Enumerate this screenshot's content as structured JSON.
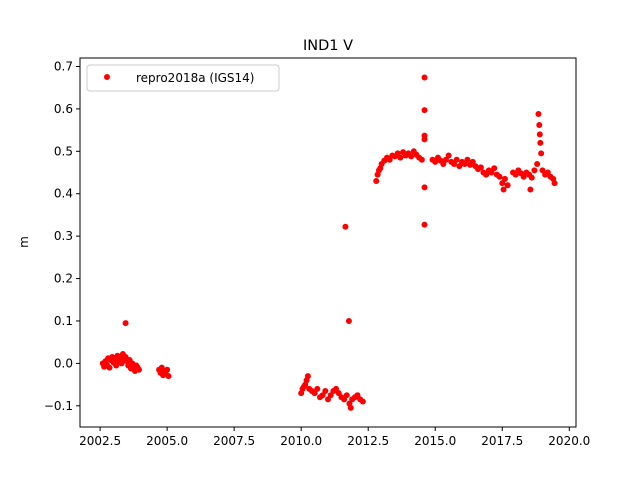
{
  "chart_data": {
    "type": "scatter",
    "title": "IND1 V",
    "xlabel": "",
    "ylabel": "m",
    "xlim": [
      2001.75,
      2020.25
    ],
    "ylim": [
      -0.15,
      0.72
    ],
    "xticks": [
      2002.5,
      2005.0,
      2007.5,
      2010.0,
      2012.5,
      2015.0,
      2017.5,
      2020.0
    ],
    "xtick_labels": [
      "2002.5",
      "2005.0",
      "2007.5",
      "2010.0",
      "2012.5",
      "2015.0",
      "2017.5",
      "2020.0"
    ],
    "yticks": [
      -0.1,
      0.0,
      0.1,
      0.2,
      0.3,
      0.4,
      0.5,
      0.6,
      0.7
    ],
    "ytick_labels": [
      "−0.1",
      "0.0",
      "0.1",
      "0.2",
      "0.3",
      "0.4",
      "0.5",
      "0.6",
      "0.7"
    ],
    "grid": false,
    "legend_position": "top-left",
    "series": [
      {
        "name": "repro2018a (IGS14)",
        "color": "#ff0000",
        "marker": "circle",
        "points": [
          [
            2002.6,
            0.0
          ],
          [
            2002.65,
            -0.008
          ],
          [
            2002.7,
            0.005
          ],
          [
            2002.75,
            -0.003
          ],
          [
            2002.8,
            0.012
          ],
          [
            2002.85,
            -0.01
          ],
          [
            2002.9,
            0.008
          ],
          [
            2002.95,
            0.015
          ],
          [
            2003.0,
            0.002
          ],
          [
            2003.05,
            0.01
          ],
          [
            2003.1,
            -0.005
          ],
          [
            2003.15,
            0.018
          ],
          [
            2003.2,
            0.006
          ],
          [
            2003.25,
            0.012
          ],
          [
            2003.3,
            0.0
          ],
          [
            2003.35,
            0.022
          ],
          [
            2003.4,
            0.01
          ],
          [
            2003.45,
            0.015
          ],
          [
            2003.5,
            0.005
          ],
          [
            2003.55,
            -0.005
          ],
          [
            2003.6,
            0.008
          ],
          [
            2003.65,
            -0.012
          ],
          [
            2003.7,
            0.0
          ],
          [
            2003.75,
            -0.008
          ],
          [
            2003.8,
            -0.018
          ],
          [
            2003.85,
            -0.005
          ],
          [
            2003.9,
            -0.01
          ],
          [
            2003.95,
            -0.015
          ],
          [
            2003.45,
            0.095
          ],
          [
            2004.7,
            -0.015
          ],
          [
            2004.75,
            -0.022
          ],
          [
            2004.8,
            -0.01
          ],
          [
            2004.85,
            -0.028
          ],
          [
            2004.9,
            -0.018
          ],
          [
            2004.95,
            -0.025
          ],
          [
            2005.0,
            -0.015
          ],
          [
            2005.05,
            -0.03
          ],
          [
            2010.0,
            -0.07
          ],
          [
            2010.05,
            -0.06
          ],
          [
            2010.1,
            -0.055
          ],
          [
            2010.15,
            -0.05
          ],
          [
            2010.2,
            -0.04
          ],
          [
            2010.25,
            -0.03
          ],
          [
            2010.3,
            -0.06
          ],
          [
            2010.4,
            -0.065
          ],
          [
            2010.5,
            -0.07
          ],
          [
            2010.6,
            -0.06
          ],
          [
            2010.7,
            -0.08
          ],
          [
            2010.8,
            -0.075
          ],
          [
            2010.9,
            -0.065
          ],
          [
            2011.0,
            -0.085
          ],
          [
            2011.1,
            -0.075
          ],
          [
            2011.2,
            -0.065
          ],
          [
            2011.3,
            -0.06
          ],
          [
            2011.4,
            -0.07
          ],
          [
            2011.5,
            -0.08
          ],
          [
            2011.6,
            -0.085
          ],
          [
            2011.7,
            -0.075
          ],
          [
            2011.8,
            -0.095
          ],
          [
            2011.9,
            -0.085
          ],
          [
            2012.0,
            -0.08
          ],
          [
            2012.1,
            -0.075
          ],
          [
            2012.2,
            -0.085
          ],
          [
            2012.3,
            -0.09
          ],
          [
            2011.65,
            0.322
          ],
          [
            2011.78,
            0.1
          ],
          [
            2011.85,
            -0.105
          ],
          [
            2012.8,
            0.43
          ],
          [
            2012.85,
            0.445
          ],
          [
            2012.9,
            0.455
          ],
          [
            2012.95,
            0.46
          ],
          [
            2013.0,
            0.47
          ],
          [
            2013.1,
            0.478
          ],
          [
            2013.2,
            0.485
          ],
          [
            2013.3,
            0.48
          ],
          [
            2013.4,
            0.49
          ],
          [
            2013.5,
            0.488
          ],
          [
            2013.6,
            0.495
          ],
          [
            2013.7,
            0.485
          ],
          [
            2013.8,
            0.498
          ],
          [
            2013.9,
            0.49
          ],
          [
            2014.0,
            0.495
          ],
          [
            2014.1,
            0.488
          ],
          [
            2014.2,
            0.5
          ],
          [
            2014.3,
            0.492
          ],
          [
            2014.4,
            0.485
          ],
          [
            2014.5,
            0.48
          ],
          [
            2014.6,
            0.674
          ],
          [
            2014.6,
            0.597
          ],
          [
            2014.6,
            0.537
          ],
          [
            2014.6,
            0.528
          ],
          [
            2014.6,
            0.415
          ],
          [
            2014.6,
            0.327
          ],
          [
            2014.9,
            0.48
          ],
          [
            2015.0,
            0.475
          ],
          [
            2015.1,
            0.485
          ],
          [
            2015.2,
            0.478
          ],
          [
            2015.3,
            0.47
          ],
          [
            2015.4,
            0.48
          ],
          [
            2015.5,
            0.49
          ],
          [
            2015.6,
            0.475
          ],
          [
            2015.7,
            0.47
          ],
          [
            2015.8,
            0.48
          ],
          [
            2015.9,
            0.465
          ],
          [
            2016.0,
            0.475
          ],
          [
            2016.1,
            0.47
          ],
          [
            2016.2,
            0.48
          ],
          [
            2016.3,
            0.468
          ],
          [
            2016.4,
            0.475
          ],
          [
            2016.5,
            0.465
          ],
          [
            2016.6,
            0.458
          ],
          [
            2016.7,
            0.462
          ],
          [
            2016.8,
            0.45
          ],
          [
            2016.9,
            0.445
          ],
          [
            2017.0,
            0.455
          ],
          [
            2017.1,
            0.45
          ],
          [
            2017.2,
            0.46
          ],
          [
            2017.3,
            0.445
          ],
          [
            2017.4,
            0.44
          ],
          [
            2017.5,
            0.425
          ],
          [
            2017.55,
            0.41
          ],
          [
            2017.6,
            0.435
          ],
          [
            2017.7,
            0.42
          ],
          [
            2017.9,
            0.45
          ],
          [
            2018.0,
            0.445
          ],
          [
            2018.1,
            0.455
          ],
          [
            2018.2,
            0.448
          ],
          [
            2018.3,
            0.44
          ],
          [
            2018.4,
            0.45
          ],
          [
            2018.5,
            0.445
          ],
          [
            2018.6,
            0.438
          ],
          [
            2018.55,
            0.41
          ],
          [
            2018.7,
            0.455
          ],
          [
            2018.8,
            0.47
          ],
          [
            2018.85,
            0.588
          ],
          [
            2018.88,
            0.562
          ],
          [
            2018.9,
            0.54
          ],
          [
            2018.92,
            0.52
          ],
          [
            2018.95,
            0.495
          ],
          [
            2019.0,
            0.455
          ],
          [
            2019.1,
            0.445
          ],
          [
            2019.2,
            0.45
          ],
          [
            2019.3,
            0.44
          ],
          [
            2019.4,
            0.435
          ],
          [
            2019.45,
            0.425
          ]
        ]
      }
    ]
  }
}
